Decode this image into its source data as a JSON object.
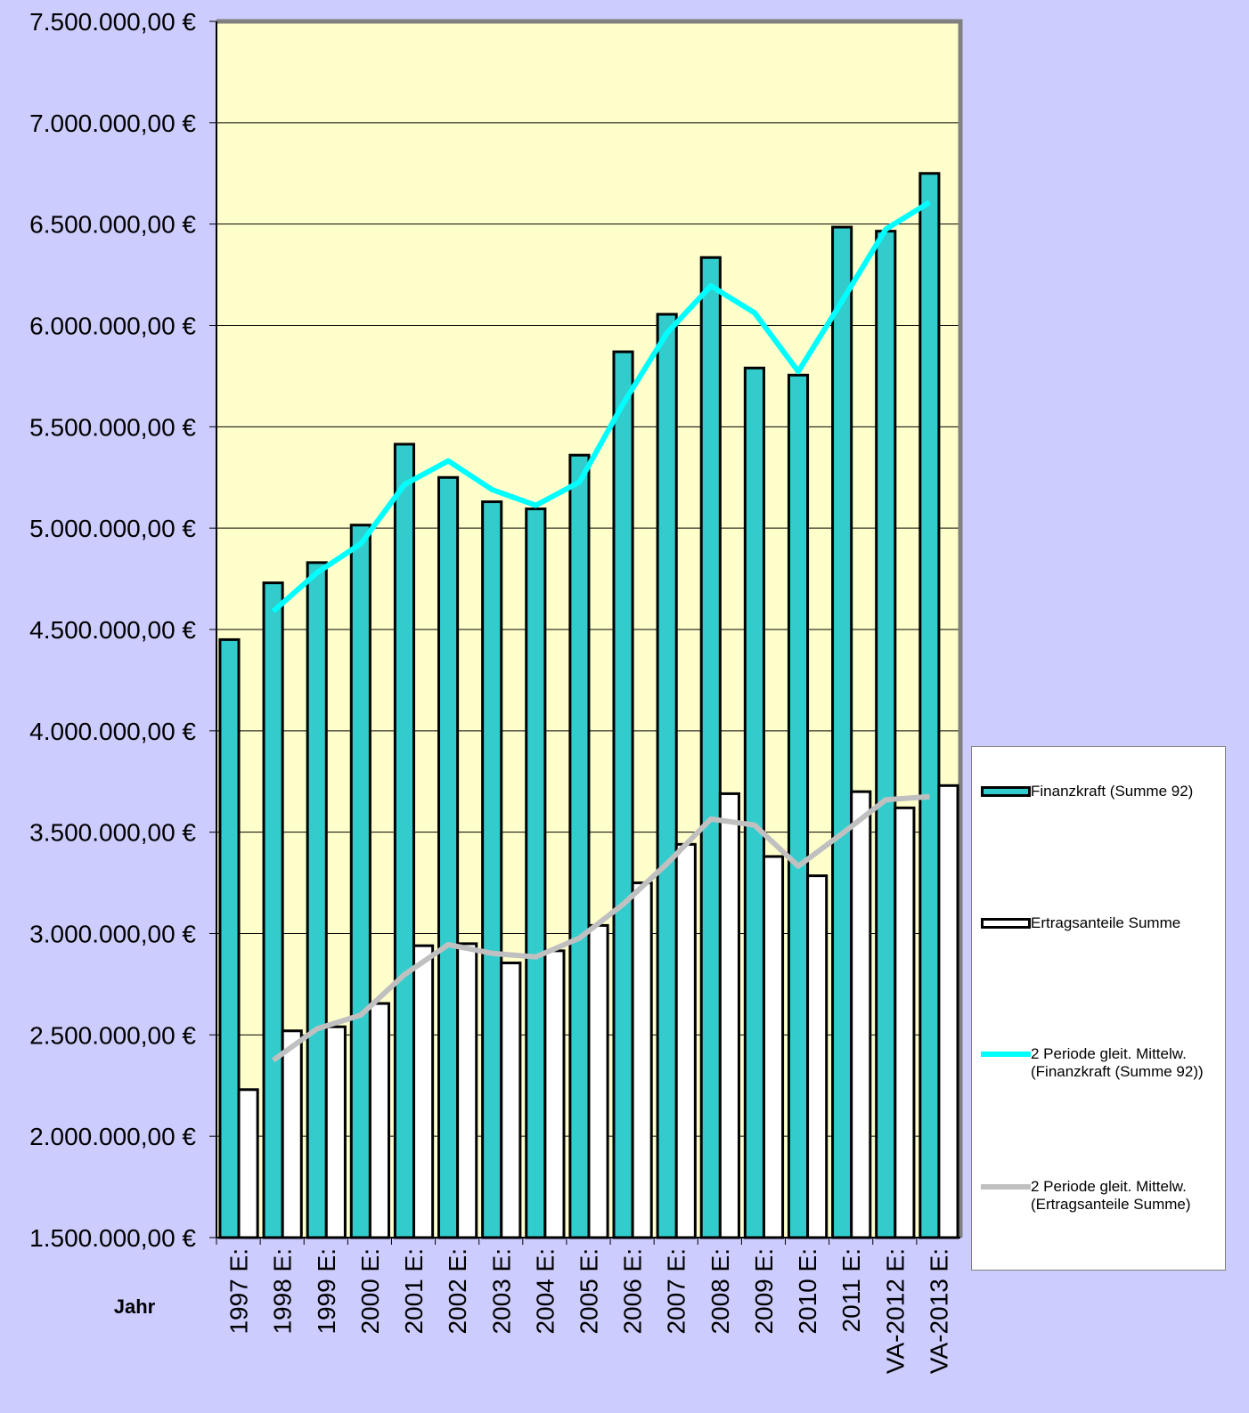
{
  "chart_data": {
    "type": "bar",
    "x_label": "Jahr",
    "categories": [
      "1997 E:",
      "1998 E:",
      "1999 E:",
      "2000 E:",
      "2001 E:",
      "2002 E:",
      "2003 E:",
      "2004 E:",
      "2005 E:",
      "2006 E:",
      "2007 E:",
      "2008 E:",
      "2009 E:",
      "2010 E:",
      "2011 E:",
      "VA-2012 E:",
      "VA-2013 E:"
    ],
    "series": [
      {
        "name": "Finanzkraft (Summe 92)",
        "type": "bar",
        "color": "#33cccc",
        "values": [
          4450000,
          4730000,
          4830000,
          5015000,
          5414000,
          5250000,
          5130000,
          5095000,
          5360000,
          5870000,
          6055000,
          6335000,
          5790000,
          5755000,
          6485000,
          6465000,
          6750000
        ]
      },
      {
        "name": "Ertragsanteile Summe",
        "type": "bar",
        "color": "#ffffff",
        "values": [
          2230000,
          2520000,
          2540000,
          2655000,
          2940000,
          2950000,
          2855000,
          2915000,
          3040000,
          3250000,
          3440000,
          3690000,
          3380000,
          3285000,
          3700000,
          3620000,
          3730000
        ]
      },
      {
        "name": "2 Periode gleit. Mittelw. (Finanzkraft (Summe 92))",
        "type": "line",
        "color": "#00ffff",
        "values": [
          null,
          4590000,
          4780000,
          4922500,
          5214500,
          5332000,
          5190000,
          5112500,
          5227500,
          5615000,
          5962500,
          6195000,
          6062500,
          5772500,
          6120000,
          6475000,
          6607500
        ]
      },
      {
        "name": "2 Periode gleit. Mittelw. (Ertragsanteile Summe)",
        "type": "line",
        "color": "#c0c0c0",
        "values": [
          null,
          2375000,
          2530000,
          2597500,
          2797500,
          2945000,
          2902500,
          2885000,
          2977500,
          3145000,
          3345000,
          3565000,
          3535000,
          3332500,
          3492500,
          3660000,
          3675000
        ]
      }
    ],
    "ylim": [
      1500000,
      7500000
    ],
    "yticks": [
      {
        "value": 1500000,
        "label": "1.500.000,00 €"
      },
      {
        "value": 2000000,
        "label": "2.000.000,00 €"
      },
      {
        "value": 2500000,
        "label": "2.500.000,00 €"
      },
      {
        "value": 3000000,
        "label": "3.000.000,00 €"
      },
      {
        "value": 3500000,
        "label": "3.500.000,00 €"
      },
      {
        "value": 4000000,
        "label": "4.000.000,00 €"
      },
      {
        "value": 4500000,
        "label": "4.500.000,00 €"
      },
      {
        "value": 5000000,
        "label": "5.000.000,00 €"
      },
      {
        "value": 5500000,
        "label": "5.500.000,00 €"
      },
      {
        "value": 6000000,
        "label": "6.000.000,00 €"
      },
      {
        "value": 6500000,
        "label": "6.500.000,00 €"
      },
      {
        "value": 7000000,
        "label": "7.000.000,00 €"
      },
      {
        "value": 7500000,
        "label": "7.500.000,00 €"
      }
    ],
    "grid": true,
    "legend": "right"
  }
}
